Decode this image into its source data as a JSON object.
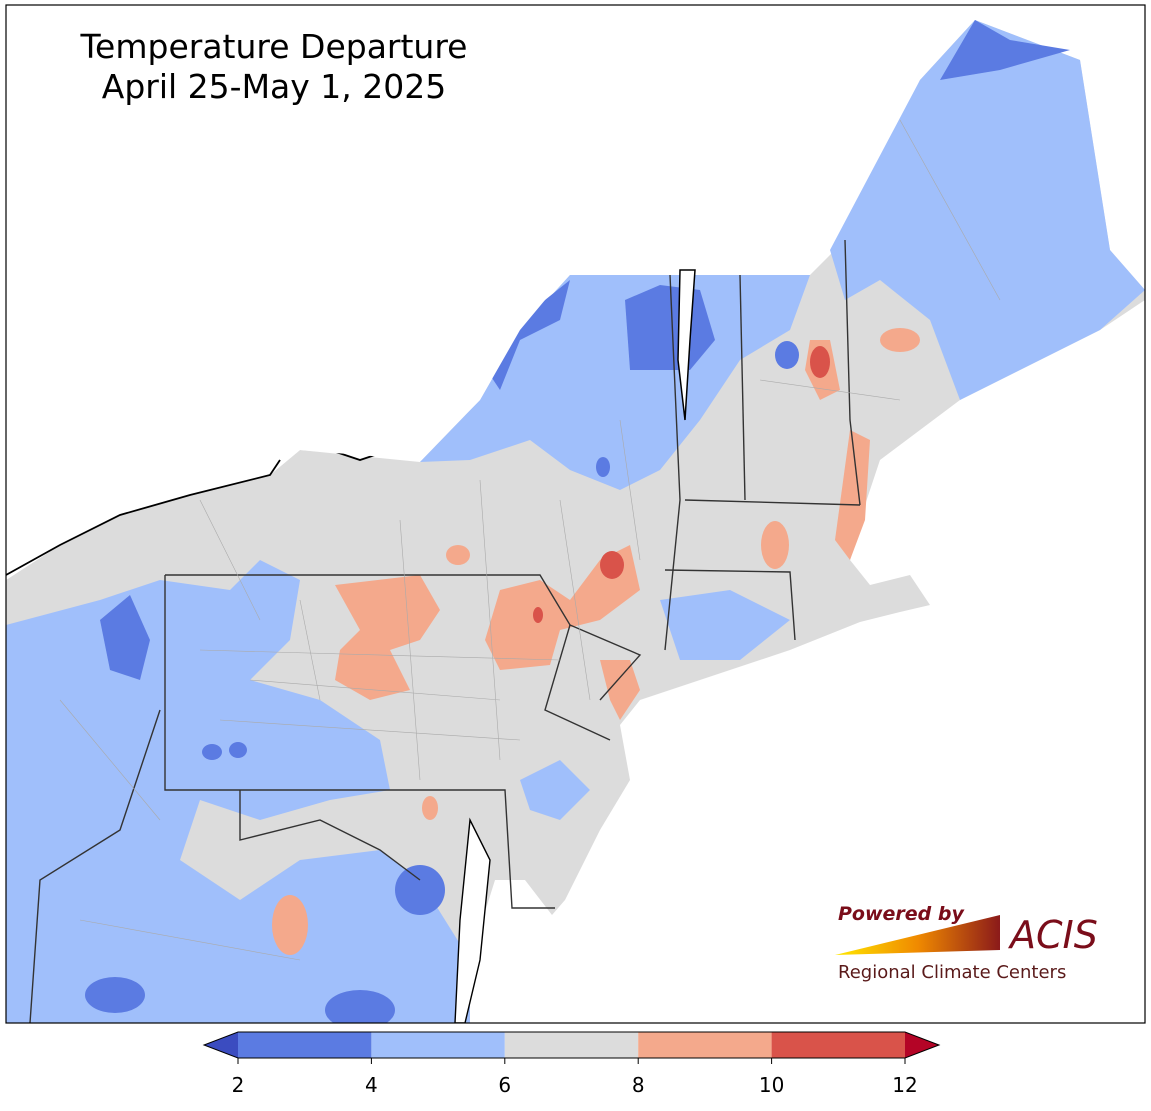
{
  "title": [
    "Temperature Departure",
    "April 25-May 1, 2025"
  ],
  "colorbar": {
    "ticks": [
      2,
      4,
      6,
      8,
      10,
      12
    ],
    "colors": [
      "#5b7be2",
      "#a0bffb",
      "#dcdcdc",
      "#f4a98c",
      "#d9534a"
    ],
    "under_color": "#3b4cc0",
    "over_color": "#b40426"
  },
  "logo": {
    "brand": "Powered by",
    "name": "ACIS",
    "tagline": "Regional Climate Centers"
  }
}
